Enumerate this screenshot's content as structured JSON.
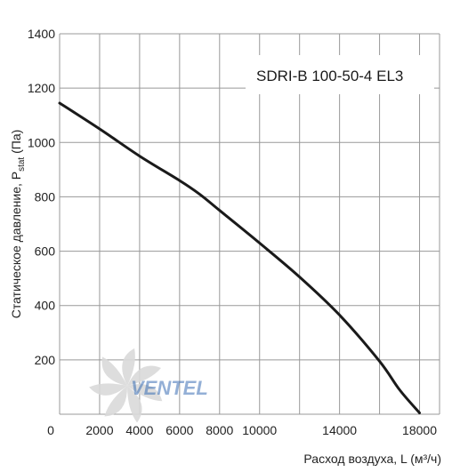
{
  "chart_data": {
    "type": "line",
    "model_label": "SDRI-B 100-50-4 EL3",
    "xlabel": "Расход воздуха, L (м³/ч)",
    "ylabel_main": "Статическое давление, P",
    "ylabel_sub": "stat",
    "ylabel_tail": " (Па)",
    "xlim": [
      0,
      19000
    ],
    "ylim": [
      0,
      1400
    ],
    "x_ticks": [
      0,
      2000,
      4000,
      6000,
      8000,
      10000,
      14000,
      18000
    ],
    "x_grid": [
      0,
      2000,
      4000,
      6000,
      8000,
      10000,
      12000,
      14000,
      16000,
      18000,
      19000
    ],
    "y_ticks": [
      200,
      400,
      600,
      800,
      1000,
      1200,
      1400
    ],
    "grid": true,
    "series": [
      {
        "x": [
          0,
          2000,
          4000,
          6000,
          7000,
          8000,
          10000,
          12000,
          14000,
          16000,
          17000,
          18000
        ],
        "y": [
          1145,
          1050,
          950,
          860,
          810,
          750,
          630,
          505,
          365,
          195,
          90,
          5
        ]
      }
    ],
    "colors": {
      "curve": "#1a1a1a",
      "grid": "#999999",
      "watermark_text": "#3b6fb5",
      "watermark_fan": "#d9d9d9"
    },
    "watermark": "VENTEL"
  }
}
